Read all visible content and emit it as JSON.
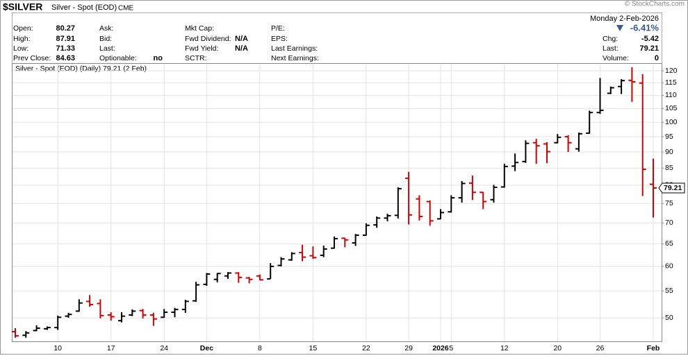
{
  "header": {
    "symbol": "$SILVER",
    "name": "Silver - Spot (EOD)",
    "exchange": "CME",
    "date": "Monday  2-Feb-2026",
    "watermark": "© StockCharts.com",
    "columns": [
      [
        {
          "label": "Open:",
          "value": "80.27"
        },
        {
          "label": "High:",
          "value": "87.91"
        },
        {
          "label": "Low:",
          "value": "71.33"
        },
        {
          "label": "Prev Close:",
          "value": "84.63"
        }
      ],
      [
        {
          "label": "Ask:"
        },
        {
          "label": "Bid:"
        },
        {
          "label": "Last:"
        },
        {
          "label": "Optionable:",
          "value": "no"
        }
      ],
      [
        {
          "label": "Mkt Cap:"
        },
        {
          "label": "Fwd Dividend:",
          "value": "N/A"
        },
        {
          "label": "Fwd Yield:",
          "value": "N/A"
        },
        {
          "label": "SCTR:"
        }
      ],
      [
        {
          "label": "P/E:"
        },
        {
          "label": "EPS:"
        },
        {
          "label": "Last Earnings:"
        },
        {
          "label": "Next Earnings:"
        }
      ]
    ],
    "change_pct": "-6.41%",
    "summary": [
      {
        "label": "Chg:",
        "value": "-5.42"
      },
      {
        "label": "Last:",
        "value": "79.21"
      },
      {
        "label": "Volume:",
        "value": "0"
      }
    ]
  },
  "chart_data": {
    "type": "ohlc",
    "legend": "Silver - Spot (EOD) (Daily) 79.21 (2 Feb)",
    "categories": [
      null,
      null,
      null,
      null,
      "10",
      null,
      null,
      null,
      null,
      "17",
      null,
      null,
      null,
      null,
      "24",
      null,
      null,
      null,
      "Dec",
      null,
      null,
      null,
      null,
      "8",
      null,
      null,
      null,
      null,
      "15",
      null,
      null,
      null,
      null,
      "22",
      null,
      null,
      null,
      "29",
      null,
      null,
      "2026",
      "5",
      null,
      null,
      null,
      null,
      "12",
      null,
      null,
      null,
      null,
      "20",
      null,
      null,
      null,
      "26",
      null,
      null,
      null,
      null,
      "Feb"
    ],
    "open": [
      47.6,
      47.0,
      47.8,
      48.1,
      48.3,
      50.3,
      51.2,
      53.0,
      52.6,
      50.5,
      49.5,
      50.5,
      51.3,
      50.5,
      50.1,
      51.0,
      51.5,
      53.1,
      56.3,
      57.3,
      58.0,
      58.6,
      57.6,
      58.0,
      57.4,
      60.2,
      61.4,
      63.0,
      62.3,
      62.4,
      64.0,
      66.3,
      65.2,
      67.0,
      69.5,
      71.2,
      71.9,
      82.0,
      76.2,
      75.5,
      71.0,
      72.8,
      76.5,
      80.6,
      78.0,
      76.0,
      79.5,
      85.6,
      87.0,
      93.0,
      92.6,
      93.0,
      95.0,
      91.0,
      96.2,
      103.5,
      110.8,
      113.5,
      116.0,
      114.9,
      80.27
    ],
    "high": [
      48.2,
      47.7,
      48.7,
      48.5,
      50.4,
      50.9,
      53.4,
      54.2,
      53.4,
      51.0,
      51.0,
      51.5,
      51.6,
      50.9,
      51.6,
      51.8,
      53.3,
      56.8,
      58.6,
      58.6,
      58.8,
      58.8,
      57.8,
      58.3,
      60.7,
      62.0,
      63.1,
      64.8,
      64.4,
      64.6,
      66.7,
      66.4,
      67.3,
      69.9,
      71.6,
      72.3,
      79.4,
      83.9,
      77.2,
      75.8,
      73.5,
      77.2,
      81.2,
      82.8,
      78.1,
      80.1,
      86.3,
      89.5,
      93.8,
      94.3,
      93.2,
      95.9,
      95.5,
      96.4,
      104.2,
      117.0,
      113.5,
      116.5,
      121.5,
      118.6,
      87.91
    ],
    "low": [
      46.6,
      46.6,
      47.7,
      47.9,
      47.9,
      50.0,
      51.1,
      52.0,
      49.9,
      49.5,
      49.2,
      50.3,
      49.9,
      48.6,
      50.0,
      50.1,
      50.9,
      52.9,
      56.0,
      56.7,
      57.4,
      56.6,
      56.5,
      57.1,
      57.4,
      60.0,
      61.2,
      61.1,
      61.6,
      62.0,
      63.9,
      64.2,
      64.5,
      66.9,
      68.8,
      70.4,
      71.1,
      69.6,
      70.6,
      69.3,
      70.9,
      72.6,
      75.2,
      75.9,
      73.5,
      75.2,
      79.3,
      84.1,
      86.6,
      86.3,
      86.5,
      92.8,
      90.0,
      90.1,
      96.0,
      103.0,
      110.5,
      110.5,
      107.5,
      77.0,
      71.33
    ],
    "close": [
      46.9,
      47.4,
      48.2,
      48.3,
      50.1,
      50.6,
      52.7,
      52.4,
      50.4,
      50.2,
      50.3,
      51.2,
      50.5,
      49.8,
      51.0,
      51.5,
      53.0,
      56.2,
      58.4,
      58.5,
      58.6,
      57.7,
      57.3,
      57.2,
      60.0,
      61.6,
      62.8,
      62.0,
      61.9,
      63.8,
      66.2,
      65.9,
      67.0,
      69.4,
      71.2,
      71.8,
      79.0,
      72.0,
      71.6,
      70.5,
      72.6,
      76.5,
      80.5,
      78.0,
      75.5,
      79.4,
      85.5,
      86.7,
      92.8,
      92.0,
      90.1,
      94.8,
      93.0,
      96.0,
      103.5,
      104.3,
      113.0,
      115.9,
      115.4,
      84.63,
      79.21
    ],
    "close_label": "79.21",
    "up_color": "#000000",
    "down_color": "#d40000",
    "log": true,
    "ylim": [
      46,
      123
    ],
    "yticks": [
      50,
      55,
      60,
      65,
      70,
      75,
      80,
      85,
      90,
      95,
      100,
      105,
      110,
      115,
      120
    ],
    "grid": true
  }
}
